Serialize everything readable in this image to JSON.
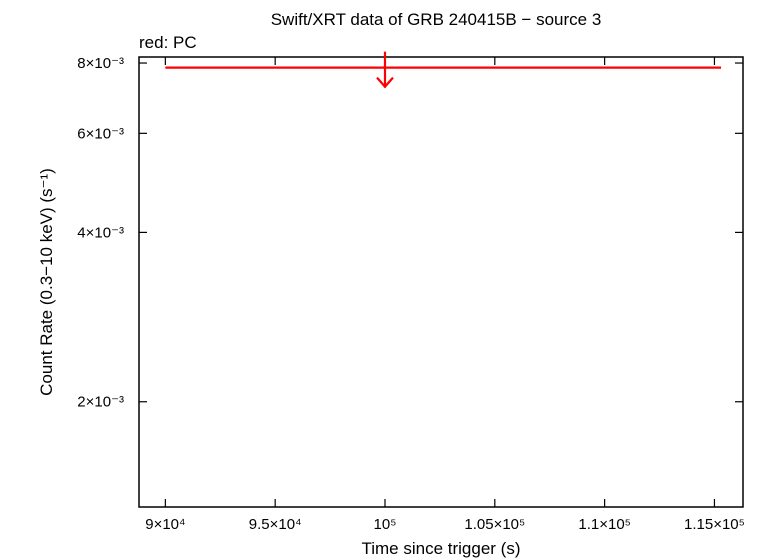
{
  "chart_data": {
    "type": "scatter",
    "title": "Swift/XRT data of GRB 240415B − source 3",
    "subtitle": "red: PC",
    "xlabel": "Time since trigger (s)",
    "ylabel": "Count Rate (0.3−10 keV) (s⁻¹)",
    "xlim": [
      88800,
      116300
    ],
    "ylim": [
      0.0013,
      0.0082
    ],
    "x_scale": "linear",
    "y_scale": "log",
    "x_ticks": [
      {
        "value": 90000,
        "label": "9×10⁴"
      },
      {
        "value": 95000,
        "label": "9.5×10⁴"
      },
      {
        "value": 100000,
        "label": "10⁵"
      },
      {
        "value": 105000,
        "label": "1.05×10⁵"
      },
      {
        "value": 110000,
        "label": "1.1×10⁵"
      },
      {
        "value": 115000,
        "label": "1.15×10⁵"
      }
    ],
    "y_ticks": [
      {
        "value": 0.002,
        "label": "2×10⁻³"
      },
      {
        "value": 0.004,
        "label": "4×10⁻³"
      },
      {
        "value": 0.006,
        "label": "6×10⁻³"
      },
      {
        "value": 0.008,
        "label": "8×10⁻³"
      }
    ],
    "grid": false,
    "series": [
      {
        "name": "PC",
        "color": "#ff0000",
        "kind": "upper_limit",
        "points": [
          {
            "x": 100000,
            "x_low": 90000,
            "x_high": 115300,
            "y": 0.00785
          }
        ]
      }
    ]
  }
}
